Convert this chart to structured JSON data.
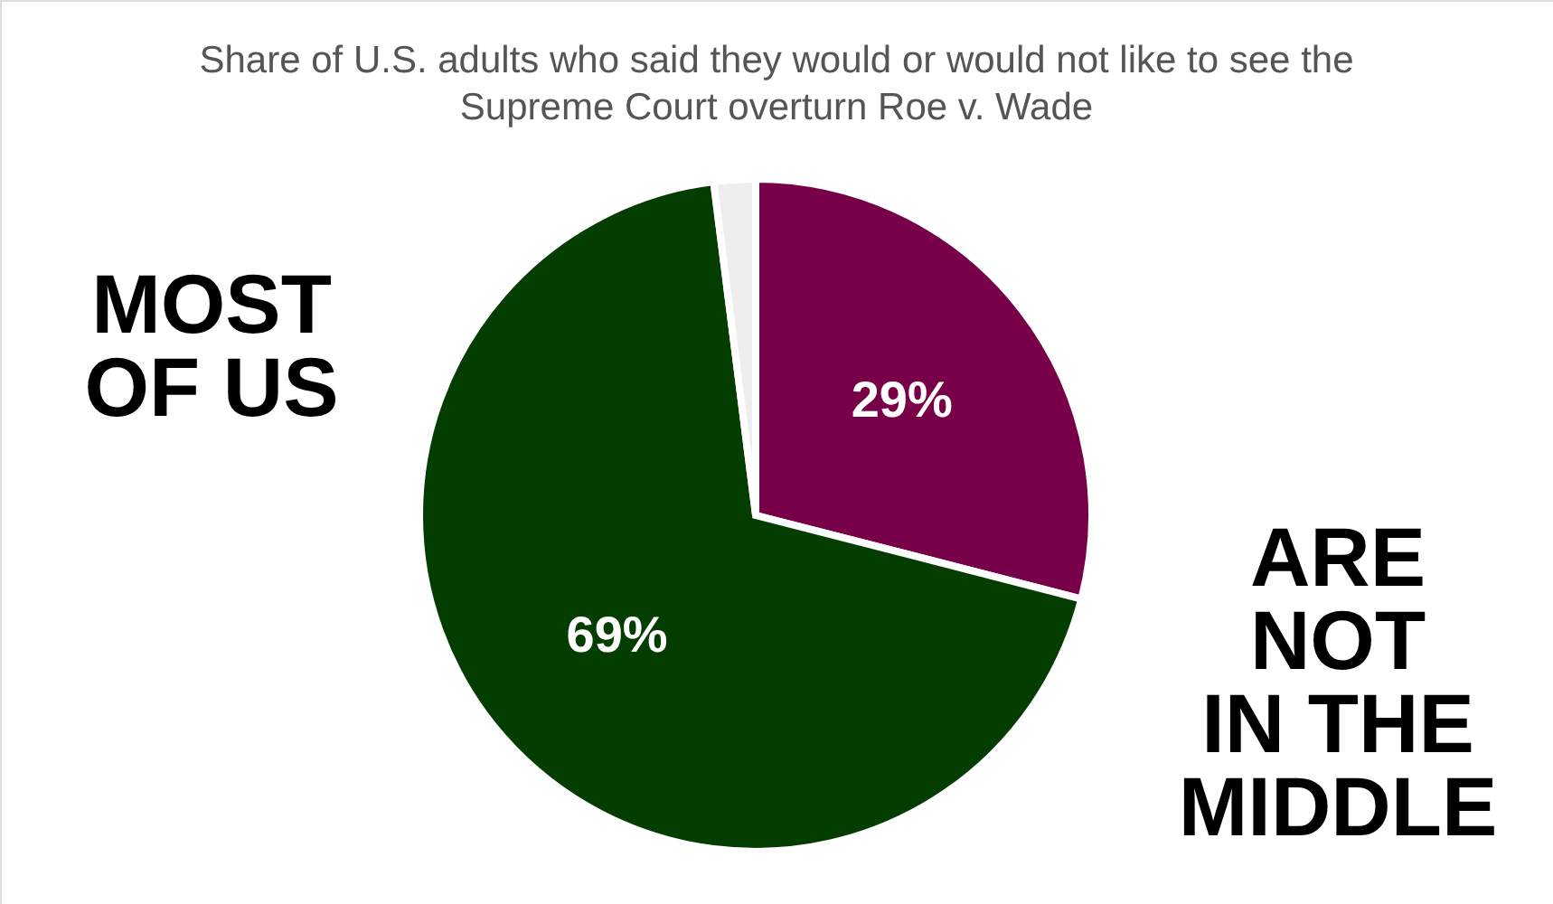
{
  "chart_data": {
    "type": "pie",
    "title": "Share of U.S. adults who said they would or would not like to see the\nSupreme Court overturn Roe v. Wade",
    "categories": [
      null,
      null,
      null
    ],
    "values": [
      29,
      69,
      2
    ],
    "colors": [
      "#780048",
      "#033d00",
      "#eeeeee"
    ],
    "value_labels": [
      "29%",
      "69%",
      null
    ],
    "legend": false,
    "annotations": [
      "MOST\nOF US",
      "ARE\nNOT\nIN THE\nMIDDLE"
    ]
  }
}
